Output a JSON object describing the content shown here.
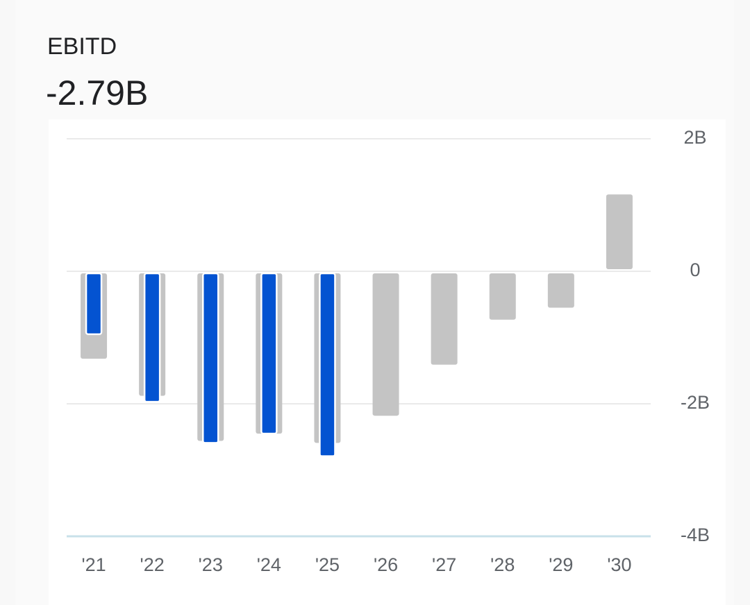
{
  "chart_data": {
    "type": "bar",
    "title": "EBITD",
    "subtitle": "-2.79B",
    "categories": [
      "'21",
      "'22",
      "'23",
      "'24",
      "'25",
      "'26",
      "'27",
      "'28",
      "'29",
      "'30"
    ],
    "series": [
      {
        "color": "#c4c4c4",
        "values": [
          -1.32,
          -1.88,
          -2.56,
          -2.45,
          -2.59,
          -2.18,
          -1.41,
          -0.73,
          -0.55,
          1.16
        ]
      },
      {
        "color": "#0453d1",
        "values": [
          -0.95,
          -1.97,
          -2.59,
          -2.45,
          -2.79,
          null,
          null,
          null,
          null,
          null
        ]
      }
    ],
    "ylim": [
      -4,
      2
    ],
    "yticks": [
      {
        "value": -4,
        "label": "-4B"
      },
      {
        "value": -2,
        "label": "-2B"
      },
      0,
      {
        "value": 2,
        "label": "2B"
      }
    ],
    "grid": true
  }
}
